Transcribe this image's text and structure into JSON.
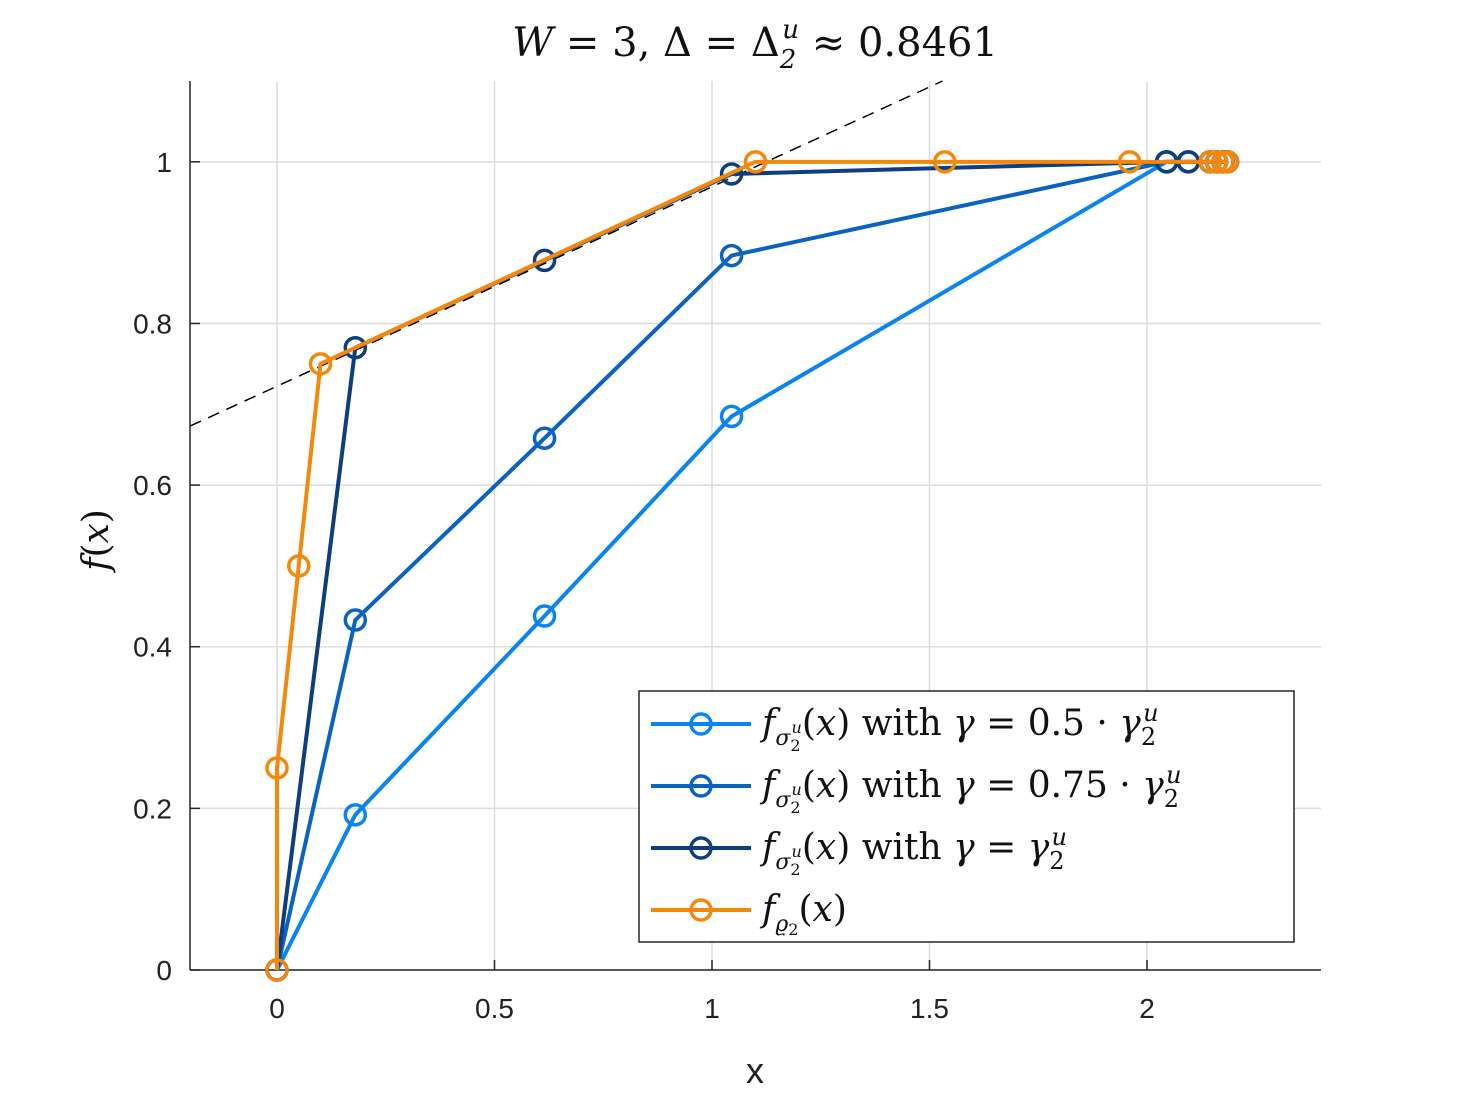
{
  "chart_data": {
    "type": "line",
    "title": "W = 3,    Δ = Δ₂ᵘ ≈ 0.8461",
    "xlabel": "x",
    "ylabel": "f(x)",
    "xlim": [
      -0.2,
      2.4
    ],
    "ylim": [
      0,
      1.1
    ],
    "xticks": [
      0,
      0.5,
      1,
      1.5,
      2
    ],
    "xtick_labels": [
      "0",
      "0.5",
      "1",
      "1.5",
      "2"
    ],
    "yticks": [
      0,
      0.2,
      0.4,
      0.6,
      0.8,
      1
    ],
    "ytick_labels": [
      "0",
      "0.2",
      "0.4",
      "0.6",
      "0.8",
      "1"
    ],
    "grid": true,
    "legend_position": "bottom-right",
    "series": [
      {
        "name": "f_σ₂ᵘ(x) with γ = 0.5 · γ₂ᵘ",
        "color": "#0a84f0",
        "marker": "circle",
        "x": [
          0,
          0.18,
          0.615,
          1.045,
          2.045,
          2.095,
          2.145,
          2.16,
          2.175,
          2.185
        ],
        "y": [
          0,
          0.192,
          0.438,
          0.685,
          1.0,
          1.0,
          1.0,
          1.0,
          1.0,
          1.0
        ]
      },
      {
        "name": "f_σ₂ᵘ(x) with γ = 0.75 · γ₂ᵘ",
        "color": "#0a63c4",
        "marker": "circle",
        "x": [
          0,
          0.18,
          0.615,
          1.045,
          2.045,
          2.095,
          2.145,
          2.16,
          2.175,
          2.185
        ],
        "y": [
          0,
          0.433,
          0.658,
          0.884,
          1.0,
          1.0,
          1.0,
          1.0,
          1.0,
          1.0
        ]
      },
      {
        "name": "f_σ₂ᵘ(x) with γ = γ₂ᵘ",
        "color": "#0d3f80",
        "marker": "circle",
        "x": [
          0,
          0.18,
          0.615,
          1.045,
          2.045,
          2.095,
          2.145,
          2.16,
          2.175,
          2.185
        ],
        "y": [
          0,
          0.77,
          0.878,
          0.985,
          1.0,
          1.0,
          1.0,
          1.0,
          1.0,
          1.0
        ]
      },
      {
        "name": "f_ϱ₂(x)",
        "color": "#f5870a",
        "marker": "circle",
        "x": [
          0,
          0,
          0.05,
          0.1,
          1.1,
          1.535,
          1.96,
          2.145,
          2.16,
          2.175,
          2.185
        ],
        "y": [
          0,
          0.25,
          0.5,
          0.75,
          1.0,
          1.0,
          1.0,
          1.0,
          1.0,
          1.0,
          1.0
        ]
      }
    ],
    "reference_line": {
      "style": "dashed",
      "color": "#000000",
      "x": [
        -0.2,
        1.53
      ],
      "y": [
        0.673,
        1.1
      ]
    }
  }
}
